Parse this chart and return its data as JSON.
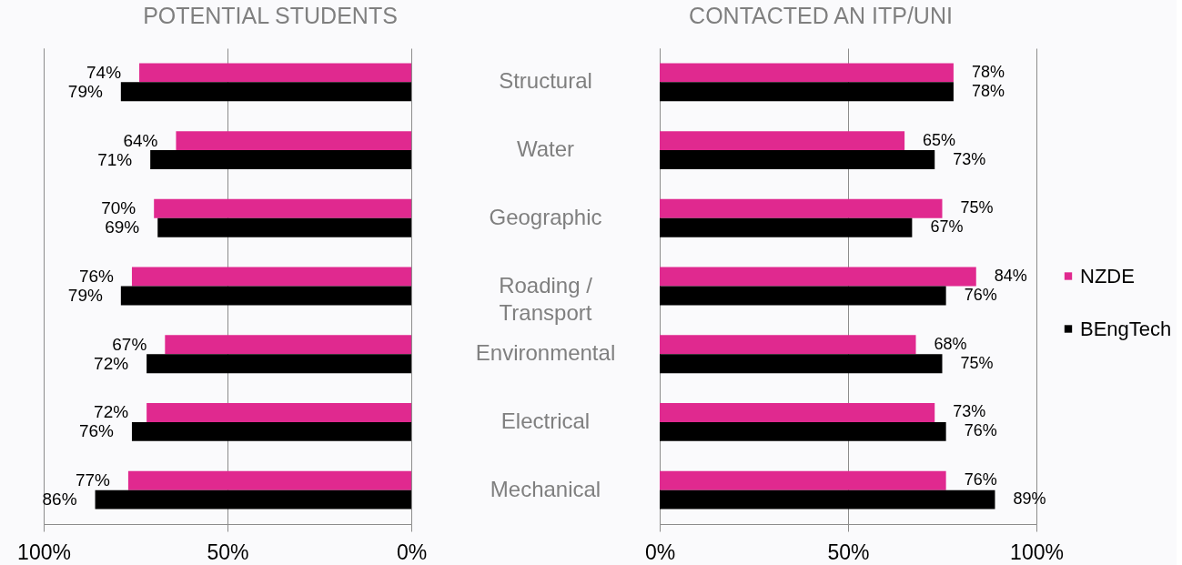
{
  "chart_data": [
    {
      "type": "bar",
      "orientation": "horizontal",
      "title": "POTENTIAL STUDENTS",
      "categories": [
        null,
        null,
        null,
        null,
        null,
        null,
        null
      ],
      "series": [
        {
          "color": "#e0298f",
          "values": [
            74,
            64,
            70,
            76,
            67,
            72,
            77
          ],
          "value_labels": [
            "74%",
            "64%",
            "70%",
            "76%",
            "67%",
            "72%",
            "77%"
          ]
        },
        {
          "color": "#000000",
          "values": [
            79,
            71,
            69,
            79,
            72,
            76,
            86
          ],
          "value_labels": [
            "79%",
            "71%",
            "69%",
            "79%",
            "72%",
            "76%",
            "86%"
          ]
        }
      ],
      "xlim": [
        100,
        0
      ],
      "xticks": [
        {
          "value": 100,
          "label": "100%"
        },
        {
          "value": 50,
          "label": "50%"
        },
        {
          "value": 0,
          "label": "0%"
        }
      ],
      "grid": "x"
    },
    {
      "type": "bar",
      "orientation": "horizontal",
      "title": "CONTACTED AN ITP/UNI",
      "categories": [
        "Structural",
        "Water",
        "Geographic",
        "Roading / Transport",
        "Environmental",
        "Electrical",
        "Mechanical"
      ],
      "series": [
        {
          "name": "NZDE",
          "color": "#e0298f",
          "values": [
            78,
            65,
            75,
            84,
            68,
            73,
            76
          ],
          "value_labels": [
            "78%",
            "65%",
            "75%",
            "84%",
            "68%",
            "73%",
            "76%"
          ]
        },
        {
          "name": "BEngTech",
          "color": "#000000",
          "values": [
            78,
            73,
            67,
            76,
            75,
            76,
            89
          ],
          "value_labels": [
            "78%",
            "73%",
            "67%",
            "76%",
            "75%",
            "76%",
            "89%"
          ]
        }
      ],
      "xlim": [
        0,
        100
      ],
      "xticks": [
        {
          "value": 0,
          "label": "0%"
        },
        {
          "value": 50,
          "label": "50%"
        },
        {
          "value": 100,
          "label": "100%"
        }
      ],
      "grid": "x",
      "legend": "right"
    }
  ]
}
